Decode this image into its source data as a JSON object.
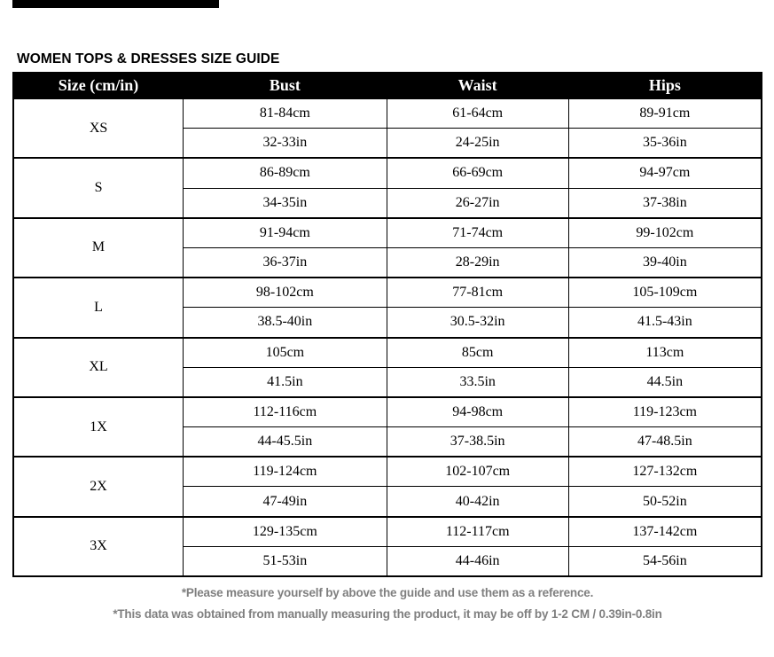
{
  "title": "WOMEN TOPS & DRESSES SIZE GUIDE",
  "table": {
    "headers": {
      "size": "Size (cm/in)",
      "bust": "Bust",
      "waist": "Waist",
      "hips": "Hips"
    },
    "rows": [
      {
        "size": "XS",
        "cm": [
          "81-84cm",
          "61-64cm",
          "89-91cm"
        ],
        "inch": [
          "32-33in",
          "24-25in",
          "35-36in"
        ]
      },
      {
        "size": "S",
        "cm": [
          "86-89cm",
          "66-69cm",
          "94-97cm"
        ],
        "inch": [
          "34-35in",
          "26-27in",
          "37-38in"
        ]
      },
      {
        "size": "M",
        "cm": [
          "91-94cm",
          "71-74cm",
          "99-102cm"
        ],
        "inch": [
          "36-37in",
          "28-29in",
          "39-40in"
        ]
      },
      {
        "size": "L",
        "cm": [
          "98-102cm",
          "77-81cm",
          "105-109cm"
        ],
        "inch": [
          "38.5-40in",
          "30.5-32in",
          "41.5-43in"
        ]
      },
      {
        "size": "XL",
        "cm": [
          "105cm",
          "85cm",
          "113cm"
        ],
        "inch": [
          "41.5in",
          "33.5in",
          "44.5in"
        ]
      },
      {
        "size": "1X",
        "cm": [
          "112-116cm",
          "94-98cm",
          "119-123cm"
        ],
        "inch": [
          "44-45.5in",
          "37-38.5in",
          "47-48.5in"
        ]
      },
      {
        "size": "2X",
        "cm": [
          "119-124cm",
          "102-107cm",
          "127-132cm"
        ],
        "inch": [
          "47-49in",
          "40-42in",
          "50-52in"
        ]
      },
      {
        "size": "3X",
        "cm": [
          "129-135cm",
          "112-117cm",
          "137-142cm"
        ],
        "inch": [
          "51-53in",
          "44-46in",
          "54-56in"
        ]
      }
    ]
  },
  "notes": [
    "*Please measure yourself by above the guide and use them as a reference.",
    "*This data was obtained from manually measuring the product, it may be off by 1-2 CM / 0.39in-0.8in"
  ],
  "colors": {
    "header_bg": "#000000",
    "header_text": "#ffffff",
    "body_text": "#000000",
    "note_text": "#7f7f7f",
    "border": "#000000",
    "background": "#ffffff"
  }
}
